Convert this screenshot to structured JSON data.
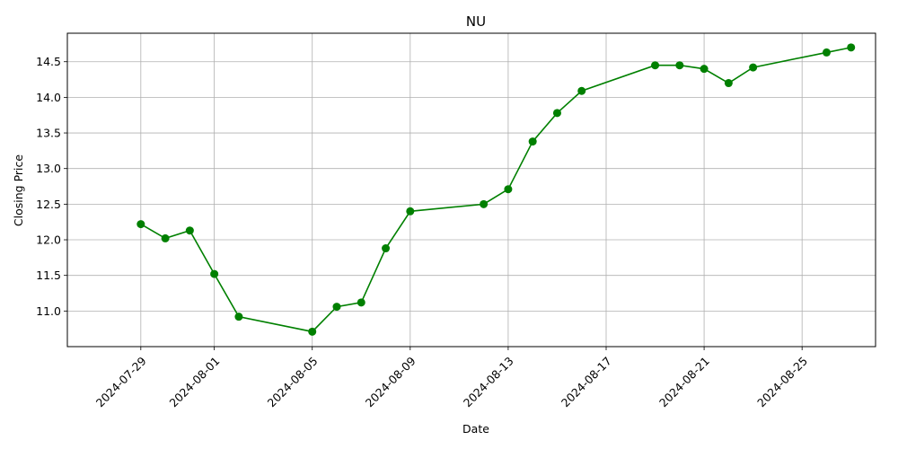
{
  "chart_data": {
    "type": "line",
    "title": "NU",
    "xlabel": "Date",
    "ylabel": "Closing Price",
    "color": "#008000",
    "grid": true,
    "xlim": [
      "2024-07-26",
      "2024-08-28"
    ],
    "ylim": [
      10.5,
      14.9
    ],
    "x_ticks": [
      "2024-07-29",
      "2024-08-01",
      "2024-08-05",
      "2024-08-09",
      "2024-08-13",
      "2024-08-17",
      "2024-08-21",
      "2024-08-25"
    ],
    "y_ticks": [
      "11.0",
      "11.5",
      "12.0",
      "12.5",
      "13.0",
      "13.5",
      "14.0",
      "14.5"
    ],
    "series": [
      {
        "x": [
          "2024-07-29",
          "2024-07-30",
          "2024-07-31",
          "2024-08-01",
          "2024-08-02",
          "2024-08-05",
          "2024-08-06",
          "2024-08-07",
          "2024-08-08",
          "2024-08-09",
          "2024-08-12",
          "2024-08-13",
          "2024-08-14",
          "2024-08-15",
          "2024-08-16",
          "2024-08-19",
          "2024-08-20",
          "2024-08-21",
          "2024-08-22",
          "2024-08-23",
          "2024-08-26",
          "2024-08-27"
        ],
        "y": [
          12.22,
          12.02,
          12.13,
          11.52,
          10.92,
          10.71,
          11.06,
          11.12,
          11.88,
          12.4,
          12.5,
          12.71,
          13.38,
          13.78,
          14.09,
          14.45,
          14.45,
          14.4,
          14.2,
          14.42,
          14.63,
          14.7
        ]
      }
    ]
  }
}
